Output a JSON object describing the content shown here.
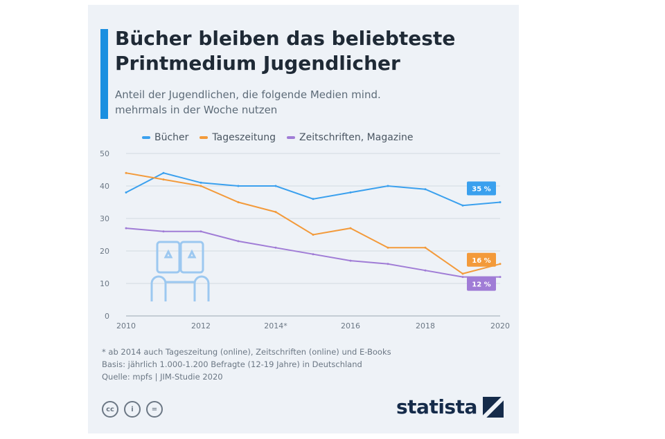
{
  "header": {
    "title": "Bücher bleiben das beliebteste Printmedium Jugendlicher",
    "subtitle": "Anteil der Jugendlichen, die folgende Medien mind. mehrmals in der Woche nutzen"
  },
  "colors": {
    "accent": "#1a8fe0",
    "buecher": "#3aa0ee",
    "tageszeitung": "#f39a3a",
    "zeitschriften": "#a07cd6"
  },
  "chart_data": {
    "type": "line",
    "x": [
      2010,
      2011,
      2012,
      2013,
      2014,
      2015,
      2016,
      2017,
      2018,
      2019,
      2020
    ],
    "x_tick_labels": [
      "2010",
      "2012",
      "2014*",
      "2016",
      "2018",
      "2020"
    ],
    "x_tick_values": [
      2010,
      2012,
      2014,
      2016,
      2018,
      2020
    ],
    "ylim": [
      0,
      50
    ],
    "y_ticks": [
      0,
      10,
      20,
      30,
      40,
      50
    ],
    "grid": true,
    "legend_position": "top-left",
    "series": [
      {
        "name": "Bücher",
        "values": [
          38,
          44,
          41,
          40,
          40,
          36,
          38,
          40,
          39,
          34,
          35
        ],
        "end_label": "35 %"
      },
      {
        "name": "Tageszeitung",
        "values": [
          44,
          42,
          40,
          35,
          32,
          25,
          27,
          21,
          21,
          13,
          16
        ],
        "end_label": "16 %"
      },
      {
        "name": "Zeitschriften, Magazine",
        "values": [
          27,
          26,
          26,
          23,
          21,
          19,
          17,
          16,
          14,
          12,
          12
        ],
        "end_label": "12 %"
      }
    ]
  },
  "footer": {
    "note": "* ab 2014 auch Tageszeitung (online), Zeitschriften (online) und E-Books",
    "basis": "Basis: jährlich 1.000-1.200 Befragte (12-19 Jahre) in Deutschland",
    "source": "Quelle: mpfs | JIM-Studie 2020",
    "brand": "statista"
  }
}
